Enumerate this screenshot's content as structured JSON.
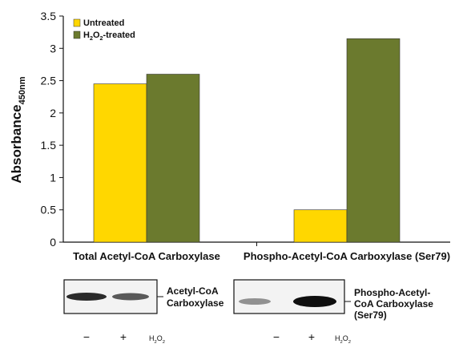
{
  "chart_data": {
    "type": "bar",
    "categories": [
      "Total Acetyl-CoA Carboxylase",
      "Phospho-Acetyl-CoA Carboxylase (Ser79)"
    ],
    "series": [
      {
        "name": "Untreated",
        "values": [
          2.45,
          0.5
        ],
        "color": "#FFD700"
      },
      {
        "name": "H2O2-treated",
        "values": [
          2.6,
          3.15
        ],
        "color": "#6B7A2E"
      }
    ],
    "legend": {
      "placement": "top-left",
      "items": [
        {
          "text": "Untreated"
        },
        {
          "pre": "H",
          "sub1": "2",
          "mid": "O",
          "sub2": "2",
          "post": "-treated"
        }
      ]
    },
    "ylabel": {
      "main": "Absorbance",
      "sub": "450nm"
    },
    "ylim": [
      0,
      3.5
    ],
    "yticks": [
      "0",
      "0.5",
      "1",
      "1.5",
      "2",
      "2.5",
      "3",
      "3.5"
    ],
    "grid": false
  },
  "blots": [
    {
      "label_lines": [
        "Acetyl-CoA",
        "Carboxylase"
      ],
      "lanes": [
        "−",
        "+"
      ],
      "treatment": {
        "pre": "H",
        "sub1": "2",
        "mid": "O",
        "sub2": "2"
      },
      "band_intensity": [
        0.85,
        0.6
      ]
    },
    {
      "label_lines": [
        "Phospho-Acetyl-",
        "CoA Carboxylase",
        "(Ser79)"
      ],
      "lanes": [
        "−",
        "+"
      ],
      "treatment": {
        "pre": "H",
        "sub1": "2",
        "mid": "O",
        "sub2": "2"
      },
      "band_intensity": [
        0.3,
        1.0
      ]
    }
  ]
}
